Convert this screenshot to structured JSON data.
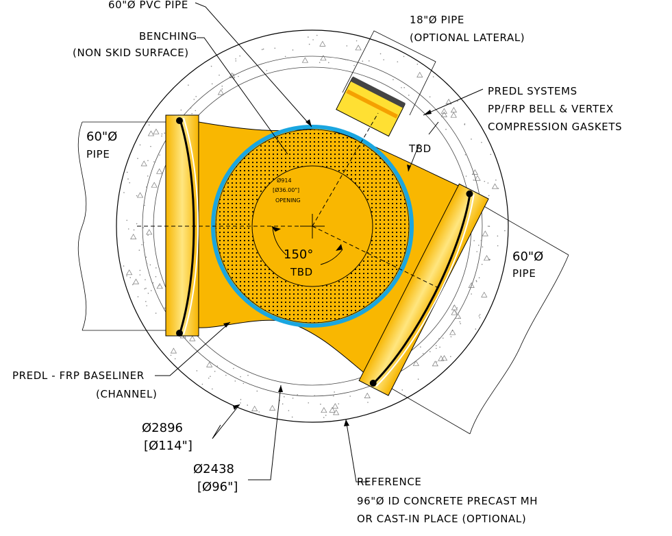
{
  "colors": {
    "channel": "#f9b701",
    "channel_light": "#ffe066",
    "pvc_ring": "#1aa6e0",
    "concrete": "#ffffff",
    "ink": "#000000"
  },
  "labels": {
    "pvc_pipe": "60\"Ø PVC PIPE",
    "benching_1": "BENCHING",
    "benching_2": "(NON SKID SURFACE)",
    "lateral_1": "18\"Ø PIPE",
    "lateral_2": "(OPTIONAL LATERAL)",
    "predl_systems_1": "PREDL SYSTEMS",
    "predl_systems_2": "PP/FRP BELL & VERTEX",
    "predl_systems_3": "COMPRESSION GASKETS",
    "tbd_top": "TBD",
    "pipe_left_1": "60\"Ø",
    "pipe_left_2": "PIPE",
    "pipe_right_1": "60\"Ø",
    "pipe_right_2": "PIPE",
    "opening_1": "Ø914",
    "opening_2": "[Ø36.00\"]",
    "opening_3": "OPENING",
    "angle": "150°",
    "tbd_center": "TBD",
    "baseliner_1": "PREDL - FRP BASELINER",
    "baseliner_2": "(CHANNEL)",
    "dia_outer_1": "Ø2896",
    "dia_outer_2": "[Ø114\"]",
    "dia_inner_1": "Ø2438",
    "dia_inner_2": "[Ø96\"]",
    "reference_1": "REFERENCE",
    "reference_2": "96\"Ø ID CONCRETE PRECAST MH",
    "reference_3": "OR CAST-IN PLACE (OPTIONAL)"
  }
}
